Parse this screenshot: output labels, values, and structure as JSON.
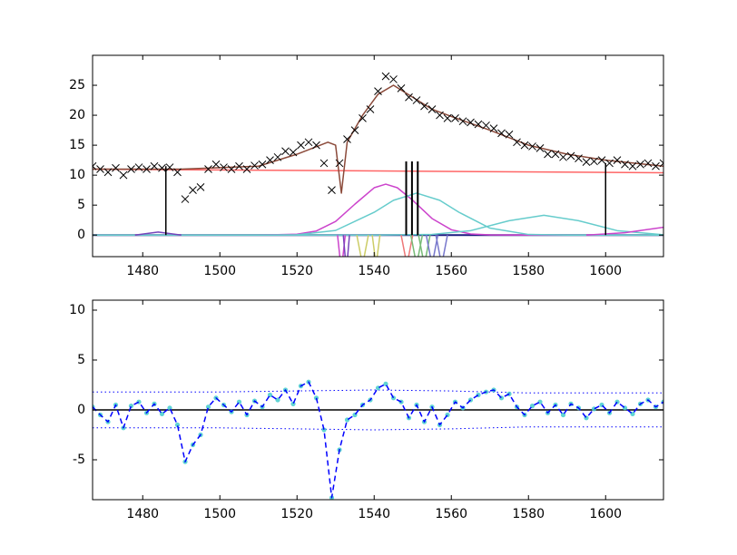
{
  "chart_data": [
    {
      "type": "line",
      "xlim": [
        1467,
        1615
      ],
      "ylim": [
        -3.6,
        30
      ],
      "xticks": [
        1480,
        1500,
        1520,
        1540,
        1560,
        1580,
        1600
      ],
      "yticks": [
        0,
        5,
        10,
        15,
        20,
        25
      ],
      "series": [
        {
          "color": "#1a1a80",
          "linestyle": "solid",
          "width": 2,
          "x": [
            1467,
            1615
          ],
          "values": [
            0,
            0
          ]
        },
        {
          "color": "#ff6666",
          "linestyle": "solid",
          "width": 1.5,
          "x": [
            1467,
            1615
          ],
          "values": [
            11,
            10.4
          ]
        },
        {
          "color": "#cc44cc",
          "linestyle": "solid",
          "width": 1.5,
          "x": [
            1467,
            1510,
            1520,
            1525,
            1530,
            1535,
            1540,
            1543,
            1546,
            1550,
            1555,
            1560,
            1565,
            1570,
            1580,
            1615
          ],
          "values": [
            0,
            0,
            0.14,
            0.68,
            2.27,
            5.16,
            7.9,
            8.5,
            7.9,
            5.8,
            2.76,
            0.89,
            0.19,
            0.03,
            0,
            0
          ]
        },
        {
          "color": "#66cccc",
          "linestyle": "solid",
          "width": 1.5,
          "x": [
            1467,
            1510,
            1520,
            1530,
            1540,
            1545,
            1551,
            1557,
            1562,
            1570,
            1580,
            1590,
            1615
          ],
          "values": [
            0,
            0,
            0.06,
            0.77,
            3.8,
            5.8,
            7,
            5.8,
            3.8,
            1.16,
            0.1,
            0,
            0
          ]
        },
        {
          "color": "#66cccc",
          "linestyle": "solid",
          "width": 1.5,
          "x": [
            1467,
            1540,
            1555,
            1565,
            1575,
            1584,
            1593,
            1603,
            1615
          ],
          "values": [
            0,
            0,
            0.1,
            0.74,
            2.4,
            3.3,
            2.4,
            0.74,
            0.06
          ]
        },
        {
          "color": "#cc44cc",
          "linestyle": "solid",
          "width": 1.5,
          "x": [
            1595,
            1605,
            1615
          ],
          "values": [
            0,
            0.4,
            1.3
          ]
        },
        {
          "color": "#7744bb",
          "linestyle": "solid",
          "width": 1.5,
          "x": [
            1478,
            1484,
            1490
          ],
          "values": [
            0,
            0.5,
            0
          ]
        },
        {
          "color": "#cc44cc",
          "linestyle": "solid",
          "width": 1.5,
          "x": [
            1530.5,
            1531.5,
            1532.5
          ],
          "values": [
            0,
            -6,
            0
          ]
        },
        {
          "color": "#7744bb",
          "linestyle": "solid",
          "width": 1.5,
          "x": [
            1532,
            1532.8,
            1533.6
          ],
          "values": [
            0,
            -6,
            0
          ]
        },
        {
          "color": "#cccc66",
          "linestyle": "solid",
          "width": 1.5,
          "x": [
            1535.5,
            1537,
            1538.5
          ],
          "values": [
            0,
            -5,
            0
          ]
        },
        {
          "color": "#cccc66",
          "linestyle": "solid",
          "width": 1.5,
          "x": [
            1539.5,
            1540.5,
            1541.5
          ],
          "values": [
            0,
            -5,
            0
          ]
        },
        {
          "color": "#ee7777",
          "linestyle": "solid",
          "width": 1.5,
          "x": [
            1547,
            1548.5,
            1550
          ],
          "values": [
            0,
            -5,
            0
          ]
        },
        {
          "color": "#77bb77",
          "linestyle": "solid",
          "width": 1.5,
          "x": [
            1549.5,
            1551,
            1552.5
          ],
          "values": [
            0,
            -5,
            0
          ]
        },
        {
          "color": "#77bb77",
          "linestyle": "solid",
          "width": 1.5,
          "x": [
            1551.5,
            1553,
            1554.5
          ],
          "values": [
            0,
            -5,
            0
          ]
        },
        {
          "color": "#7777cc",
          "linestyle": "solid",
          "width": 1.5,
          "x": [
            1553.5,
            1555,
            1556.5
          ],
          "values": [
            0,
            -5,
            0
          ]
        },
        {
          "color": "#7777cc",
          "linestyle": "solid",
          "width": 1.5,
          "x": [
            1556,
            1557.5,
            1559
          ],
          "values": [
            0,
            -5,
            0
          ]
        },
        {
          "color": "#8b4a3a",
          "linestyle": "solid",
          "width": 1.5,
          "x": [
            1467,
            1490,
            1510,
            1520,
            1528,
            1530,
            1531.5,
            1533,
            1537,
            1541,
            1545,
            1550,
            1555,
            1560,
            1570,
            1580,
            1590,
            1600,
            1615
          ],
          "values": [
            11,
            11,
            11.5,
            13.5,
            15.5,
            15,
            7,
            15.5,
            20,
            23.5,
            25,
            23,
            21,
            19.8,
            17.5,
            15,
            13.5,
            12.5,
            11.5
          ]
        },
        {
          "color": "#000000",
          "linestyle": "solid",
          "width": 1.5,
          "x": [
            1486,
            1486
          ],
          "values": [
            0,
            11.5
          ]
        },
        {
          "color": "#000000",
          "linestyle": "solid",
          "width": 2,
          "x": [
            1548.3,
            1548.3
          ],
          "values": [
            0,
            12.3
          ]
        },
        {
          "color": "#000000",
          "linestyle": "solid",
          "width": 2,
          "x": [
            1549.8,
            1549.8
          ],
          "values": [
            0,
            12.3
          ]
        },
        {
          "color": "#000000",
          "linestyle": "solid",
          "width": 2,
          "x": [
            1551.3,
            1551.3
          ],
          "values": [
            0,
            12.3
          ]
        },
        {
          "color": "#000000",
          "linestyle": "solid",
          "width": 1.5,
          "x": [
            1600,
            1600
          ],
          "values": [
            0,
            12
          ]
        },
        {
          "color": "#000000",
          "marker": "x",
          "x": [
            1467,
            1469,
            1471,
            1473,
            1475,
            1477,
            1479,
            1481,
            1483,
            1485,
            1487,
            1489,
            1491,
            1493,
            1495,
            1497,
            1499,
            1501,
            1503,
            1505,
            1507,
            1509,
            1511,
            1513,
            1515,
            1517,
            1519,
            1521,
            1523,
            1525,
            1527,
            1529,
            1531,
            1533,
            1535,
            1537,
            1539,
            1541,
            1543,
            1545,
            1547,
            1549,
            1551,
            1553,
            1555,
            1557,
            1559,
            1561,
            1563,
            1565,
            1567,
            1569,
            1571,
            1573,
            1575,
            1577,
            1579,
            1581,
            1583,
            1585,
            1587,
            1589,
            1591,
            1593,
            1595,
            1597,
            1599,
            1601,
            1603,
            1605,
            1607,
            1609,
            1611,
            1613,
            1615
          ],
          "values": [
            11.5,
            11,
            10.5,
            11.2,
            10,
            11,
            11.3,
            11,
            11.5,
            11.2,
            11.3,
            10.5,
            6,
            7.5,
            8,
            11,
            11.8,
            11.3,
            11,
            11.5,
            11,
            11.6,
            11.8,
            12.5,
            13,
            14,
            13.8,
            15,
            15.5,
            15,
            12,
            7.5,
            12,
            16,
            17.5,
            19.5,
            21,
            24,
            26.5,
            26,
            24.5,
            23,
            22.5,
            21.5,
            21,
            20,
            19.5,
            19.5,
            19,
            18.8,
            18.5,
            18.3,
            17.8,
            17,
            16.8,
            15.5,
            15,
            14.8,
            14.5,
            13.5,
            13.5,
            13,
            13.2,
            12.8,
            12.2,
            12.3,
            12.5,
            12,
            12.5,
            11.8,
            11.5,
            11.8,
            12,
            11.5,
            12
          ]
        }
      ]
    },
    {
      "type": "line",
      "xlim": [
        1467,
        1615
      ],
      "ylim": [
        -9,
        11
      ],
      "xticks": [
        1480,
        1500,
        1520,
        1540,
        1560,
        1580,
        1600
      ],
      "yticks": [
        -5,
        0,
        5,
        10
      ],
      "series": [
        {
          "color": "#000000",
          "linestyle": "solid",
          "width": 1.5,
          "x": [
            1467,
            1615
          ],
          "values": [
            0,
            0
          ]
        },
        {
          "color": "#0000ff",
          "linestyle": "dotted",
          "width": 1,
          "x": [
            1467,
            1500,
            1520,
            1540,
            1560,
            1580,
            1615
          ],
          "values": [
            1.8,
            1.8,
            1.9,
            2.0,
            1.9,
            1.7,
            1.7
          ]
        },
        {
          "color": "#0000ff",
          "linestyle": "dotted",
          "width": 1,
          "x": [
            1467,
            1500,
            1520,
            1540,
            1560,
            1580,
            1615
          ],
          "values": [
            -1.8,
            -1.8,
            -1.9,
            -2.0,
            -1.9,
            -1.7,
            -1.7
          ]
        },
        {
          "color": "#44cccc",
          "marker": "o",
          "x": [
            1467,
            1469,
            1471,
            1473,
            1475,
            1477,
            1479,
            1481,
            1483,
            1485,
            1487,
            1489,
            1491,
            1493,
            1495,
            1497,
            1499,
            1501,
            1503,
            1505,
            1507,
            1509,
            1511,
            1513,
            1515,
            1517,
            1519,
            1521,
            1523,
            1525,
            1527,
            1529,
            1531,
            1533,
            1535,
            1537,
            1539,
            1541,
            1543,
            1545,
            1547,
            1549,
            1551,
            1553,
            1555,
            1557,
            1559,
            1561,
            1563,
            1565,
            1567,
            1569,
            1571,
            1573,
            1575,
            1577,
            1579,
            1581,
            1583,
            1585,
            1587,
            1589,
            1591,
            1593,
            1595,
            1597,
            1599,
            1601,
            1603,
            1605,
            1607,
            1609,
            1611,
            1613,
            1615
          ],
          "values": [
            0.3,
            -0.5,
            -1.2,
            0.5,
            -1.8,
            0.4,
            0.8,
            -0.3,
            0.6,
            -0.4,
            0.2,
            -1.5,
            -5.2,
            -3.5,
            -2.5,
            0.3,
            1.2,
            0.5,
            -0.2,
            0.8,
            -0.5,
            0.9,
            0.3,
            1.5,
            1.0,
            2.0,
            0.6,
            2.4,
            2.8,
            1.2,
            -2.0,
            -8.8,
            -4.0,
            -1.0,
            -0.5,
            0.5,
            1.0,
            2.2,
            2.6,
            1.2,
            0.8,
            -0.8,
            0.5,
            -1.2,
            0.3,
            -1.5,
            -0.5,
            0.8,
            0.2,
            1.0,
            1.5,
            1.8,
            2.0,
            1.2,
            1.6,
            0.3,
            -0.5,
            0.4,
            0.8,
            -0.3,
            0.5,
            -0.5,
            0.6,
            0.2,
            -0.8,
            0.1,
            0.5,
            -0.3,
            0.8,
            0.2,
            -0.4,
            0.6,
            1.0,
            0.3,
            0.8
          ]
        },
        {
          "color": "#0000ff",
          "linestyle": "dashed",
          "width": 1.5,
          "x": [
            1467,
            1469,
            1471,
            1473,
            1475,
            1477,
            1479,
            1481,
            1483,
            1485,
            1487,
            1489,
            1491,
            1493,
            1495,
            1497,
            1499,
            1501,
            1503,
            1505,
            1507,
            1509,
            1511,
            1513,
            1515,
            1517,
            1519,
            1521,
            1523,
            1525,
            1527,
            1529,
            1531,
            1533,
            1535,
            1537,
            1539,
            1541,
            1543,
            1545,
            1547,
            1549,
            1551,
            1553,
            1555,
            1557,
            1559,
            1561,
            1563,
            1565,
            1567,
            1569,
            1571,
            1573,
            1575,
            1577,
            1579,
            1581,
            1583,
            1585,
            1587,
            1589,
            1591,
            1593,
            1595,
            1597,
            1599,
            1601,
            1603,
            1605,
            1607,
            1609,
            1611,
            1613,
            1615
          ],
          "values": [
            0.3,
            -0.5,
            -1.2,
            0.5,
            -1.8,
            0.4,
            0.8,
            -0.3,
            0.6,
            -0.4,
            0.2,
            -1.5,
            -5.2,
            -3.5,
            -2.5,
            0.3,
            1.2,
            0.5,
            -0.2,
            0.8,
            -0.5,
            0.9,
            0.3,
            1.5,
            1.0,
            2.0,
            0.6,
            2.4,
            2.8,
            1.2,
            -2.0,
            -8.8,
            -4.0,
            -1.0,
            -0.5,
            0.5,
            1.0,
            2.2,
            2.6,
            1.2,
            0.8,
            -0.8,
            0.5,
            -1.2,
            0.3,
            -1.5,
            -0.5,
            0.8,
            0.2,
            1.0,
            1.5,
            1.8,
            2.0,
            1.2,
            1.6,
            0.3,
            -0.5,
            0.4,
            0.8,
            -0.3,
            0.5,
            -0.5,
            0.6,
            0.2,
            -0.8,
            0.1,
            0.5,
            -0.3,
            0.8,
            0.2,
            -0.4,
            0.6,
            1.0,
            0.3,
            0.8
          ]
        }
      ]
    }
  ]
}
